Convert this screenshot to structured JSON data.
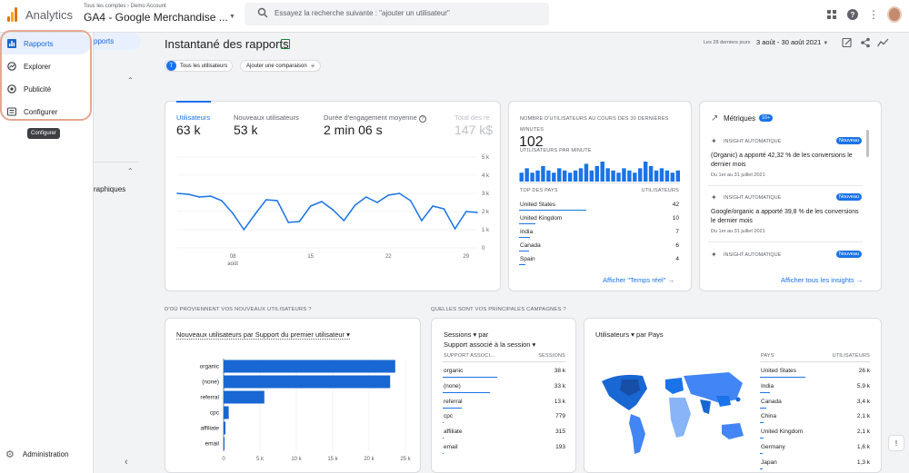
{
  "app": {
    "name": "Analytics",
    "account_path": "Tous les comptes › Demo Account",
    "property": "GA4 - Google Merchandise ...",
    "search_placeholder": "Essayez la recherche suivante : \"ajouter un utilisateur\""
  },
  "sidebar": {
    "items": [
      {
        "label": "Rapports",
        "icon": "bar-chart-icon"
      },
      {
        "label": "Explorer",
        "icon": "explore-icon"
      },
      {
        "label": "Publicité",
        "icon": "ads-icon"
      },
      {
        "label": "Configurer",
        "icon": "list-icon"
      }
    ],
    "tooltip": "Configurer",
    "admin_label": "Administration",
    "subnav_active": "pports",
    "subnav_item": "raphiques"
  },
  "header": {
    "title": "Instantané des rapports",
    "date_label": "Les 28 derniers jours",
    "date_range": "3 août - 30 août 2021"
  },
  "chips": {
    "users": "Tous les utilisateurs",
    "users_avatar": "T",
    "compare": "Ajouter une comparaison"
  },
  "metrics": {
    "tabs": [
      {
        "label": "Utilisateurs",
        "value": "63 k"
      },
      {
        "label": "Nouveaux utilisateurs",
        "value": "53 k"
      },
      {
        "label": "Durée d'engagement moyenne",
        "value": "2 min 06 s"
      },
      {
        "label": "Total des re",
        "value": "147 k$"
      }
    ],
    "y_ticks": [
      "5 k",
      "4 k",
      "3 k",
      "2 k",
      "1 k",
      "0"
    ],
    "x_ticks": [
      "08",
      "15",
      "22",
      "29"
    ],
    "x_sub": "août"
  },
  "chart_data": {
    "type": "line",
    "x": [
      "08/03",
      "08/04",
      "08/05",
      "08/06",
      "08/07",
      "08/08",
      "08/09",
      "08/10",
      "08/11",
      "08/12",
      "08/13",
      "08/14",
      "08/15",
      "08/16",
      "08/17",
      "08/18",
      "08/19",
      "08/20",
      "08/21",
      "08/22",
      "08/23",
      "08/24",
      "08/25",
      "08/26",
      "08/27",
      "08/28",
      "08/29",
      "08/30"
    ],
    "series": [
      {
        "values": [
          3.0,
          2.95,
          2.8,
          2.85,
          2.6,
          1.9,
          1.0,
          1.85,
          2.65,
          2.6,
          1.4,
          1.45,
          2.3,
          2.55,
          2.1,
          1.5,
          2.35,
          2.8,
          2.5,
          2.9,
          3.0,
          2.6,
          1.5,
          2.3,
          2.15,
          1.05,
          2.0,
          1.95
        ]
      }
    ],
    "ylim": [
      0,
      5
    ],
    "ylabel": "",
    "xlabel": ""
  },
  "realtime": {
    "title": "NOMBRE D'UTILISATEURS AU COURS DES 30 DERNIÈRES MINUTES",
    "value": "102",
    "per_min": "UTILISATEURS PAR MINUTE",
    "bars": [
      4,
      6,
      4,
      5,
      7,
      5,
      4,
      6,
      5,
      4,
      5,
      6,
      8,
      5,
      7,
      9,
      6,
      5,
      4,
      6,
      5,
      4,
      6,
      9,
      7,
      5,
      6,
      5,
      4,
      5
    ],
    "col_country": "TOP DES PAYS",
    "col_users": "UTILISATEURS",
    "rows": [
      {
        "c": "United States",
        "v": "42"
      },
      {
        "c": "United Kingdom",
        "v": "10"
      },
      {
        "c": "India",
        "v": "7"
      },
      {
        "c": "Canada",
        "v": "6"
      },
      {
        "c": "Spain",
        "v": "4"
      }
    ],
    "link": "Afficher \"Temps réel\" →"
  },
  "insights": {
    "title": "Métriques",
    "badge": "10+",
    "items": [
      {
        "tag": "INSIGHT AUTOMATIQUE",
        "badge": "Nouveau",
        "text": "(Organic) a apporté 42,32 % de les conversions le dernier mois",
        "date": "Du 1er au 31 juillet 2021"
      },
      {
        "tag": "INSIGHT AUTOMATIQUE",
        "badge": "Nouveau",
        "text": "Google/organic a apporté 39,8 % de les conversions le dernier mois",
        "date": "Du 1er au 31 juillet 2021"
      },
      {
        "tag": "INSIGHT AUTOMATIQUE",
        "badge": "Nouveau",
        "text": "",
        "date": ""
      }
    ],
    "link": "Afficher tous les insights →"
  },
  "sections": {
    "where": "D'OÙ PROVIENNENT VOS NOUVEAUX UTILISATEURS ?",
    "campaigns": "QUELLES SONT VOS PRINCIPALES CAMPAGNES ?"
  },
  "new_users": {
    "selector": "Nouveaux utilisateurs par Support du premier utilisateur ▾",
    "categories": [
      "organic",
      "(none)",
      "referral",
      "cpc",
      "affiliate",
      "email"
    ],
    "values": [
      23600,
      22900,
      5600,
      700,
      250,
      60
    ],
    "x_ticks": [
      "0",
      "5 k",
      "10 k",
      "15 k",
      "20 k",
      "25 k"
    ]
  },
  "campaigns": {
    "sel1": "Sessions ▾  par",
    "sel2": "Support associé à la session ▾",
    "col1": "SUPPORT ASSOCI...",
    "col2": "SESSIONS",
    "rows": [
      {
        "c": "organic",
        "v": "38 k"
      },
      {
        "c": "(none)",
        "v": "33 k"
      },
      {
        "c": "referral",
        "v": "13 k"
      },
      {
        "c": "cpc",
        "v": "779"
      },
      {
        "c": "affiliate",
        "v": "315"
      },
      {
        "c": "email",
        "v": "193"
      }
    ]
  },
  "countries": {
    "sel": "Utilisateurs ▾ par Pays",
    "col1": "PAYS",
    "col2": "UTILISATEURS",
    "rows": [
      {
        "c": "United States",
        "v": "26 k"
      },
      {
        "c": "India",
        "v": "5,9 k"
      },
      {
        "c": "Canada",
        "v": "3,4 k"
      },
      {
        "c": "China",
        "v": "2,1 k"
      },
      {
        "c": "United Kingdom",
        "v": "2,1 k"
      },
      {
        "c": "Germany",
        "v": "1,6 k"
      },
      {
        "c": "Japan",
        "v": "1,3 k"
      }
    ]
  },
  "colors": {
    "accent": "#1a73e8",
    "bar": "#1967d2",
    "highlight": "#e3a893"
  }
}
